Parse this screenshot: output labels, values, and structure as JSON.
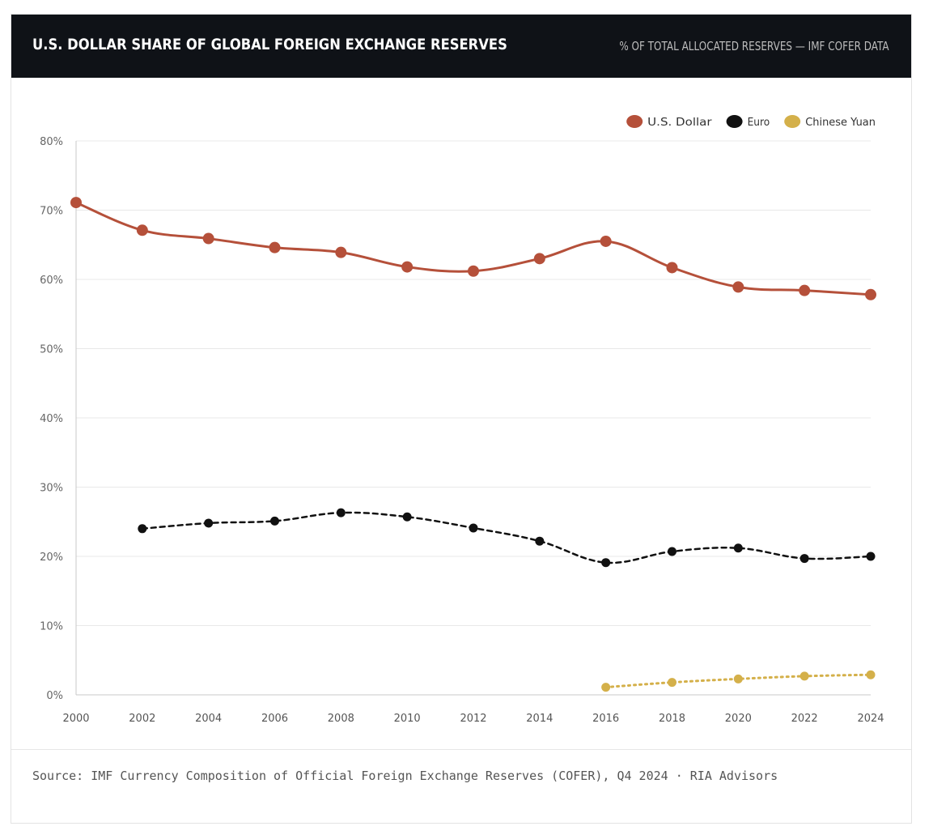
{
  "header": {
    "title": "U.S. DOLLAR SHARE OF GLOBAL FOREIGN EXCHANGE RESERVES",
    "subtitle": "% OF TOTAL ALLOCATED RESERVES — IMF COFER DATA"
  },
  "footer": {
    "source": "Source: IMF Currency Composition of Official Foreign Exchange Reserves (COFER), Q4 2024  ·  RIA Advisors"
  },
  "colors": {
    "header_bg": "#0f1217",
    "usd": "#b5503a",
    "eur": "#111111",
    "cny": "#d4b04a",
    "grid": "#e8e8e8"
  },
  "chart_data": {
    "type": "line",
    "title": "U.S. DOLLAR SHARE OF GLOBAL FOREIGN EXCHANGE RESERVES",
    "subtitle": "% OF TOTAL ALLOCATED RESERVES — IMF COFER DATA",
    "xlabel": "",
    "ylabel": "",
    "x": [
      2000,
      2002,
      2004,
      2006,
      2008,
      2010,
      2012,
      2014,
      2016,
      2018,
      2020,
      2022,
      2024
    ],
    "xlim": [
      2000,
      2024
    ],
    "ylim": [
      0,
      80
    ],
    "y_ticks": [
      0,
      10,
      20,
      30,
      40,
      50,
      60,
      70,
      80
    ],
    "y_tick_labels": [
      "0%",
      "10%",
      "20%",
      "30%",
      "40%",
      "50%",
      "60%",
      "70%",
      "80%"
    ],
    "x_tick_labels": [
      "2000",
      "2002",
      "2004",
      "2006",
      "2008",
      "2010",
      "2012",
      "2014",
      "2016",
      "2018",
      "2020",
      "2022",
      "2024"
    ],
    "grid": true,
    "legend_position": "top-right",
    "series": [
      {
        "name": "U.S. Dollar",
        "color": "#b5503a",
        "style": "solid",
        "x": [
          2000,
          2002,
          2004,
          2006,
          2008,
          2010,
          2012,
          2014,
          2016,
          2018,
          2020,
          2022,
          2024
        ],
        "values": [
          71.1,
          67.1,
          65.9,
          64.6,
          63.9,
          61.8,
          61.2,
          63.0,
          65.5,
          61.7,
          58.9,
          58.4,
          57.8
        ]
      },
      {
        "name": "Euro",
        "color": "#111111",
        "style": "dashed",
        "x": [
          2002,
          2004,
          2006,
          2008,
          2010,
          2012,
          2014,
          2016,
          2018,
          2020,
          2022,
          2024
        ],
        "values": [
          24.0,
          24.8,
          25.1,
          26.3,
          25.7,
          24.1,
          22.2,
          19.1,
          20.7,
          21.2,
          19.7,
          20.0
        ]
      },
      {
        "name": "Chinese Yuan",
        "color": "#d4b04a",
        "style": "dotted",
        "x": [
          2016,
          2018,
          2020,
          2022,
          2024
        ],
        "values": [
          1.1,
          1.8,
          2.3,
          2.7,
          2.9
        ]
      }
    ]
  }
}
